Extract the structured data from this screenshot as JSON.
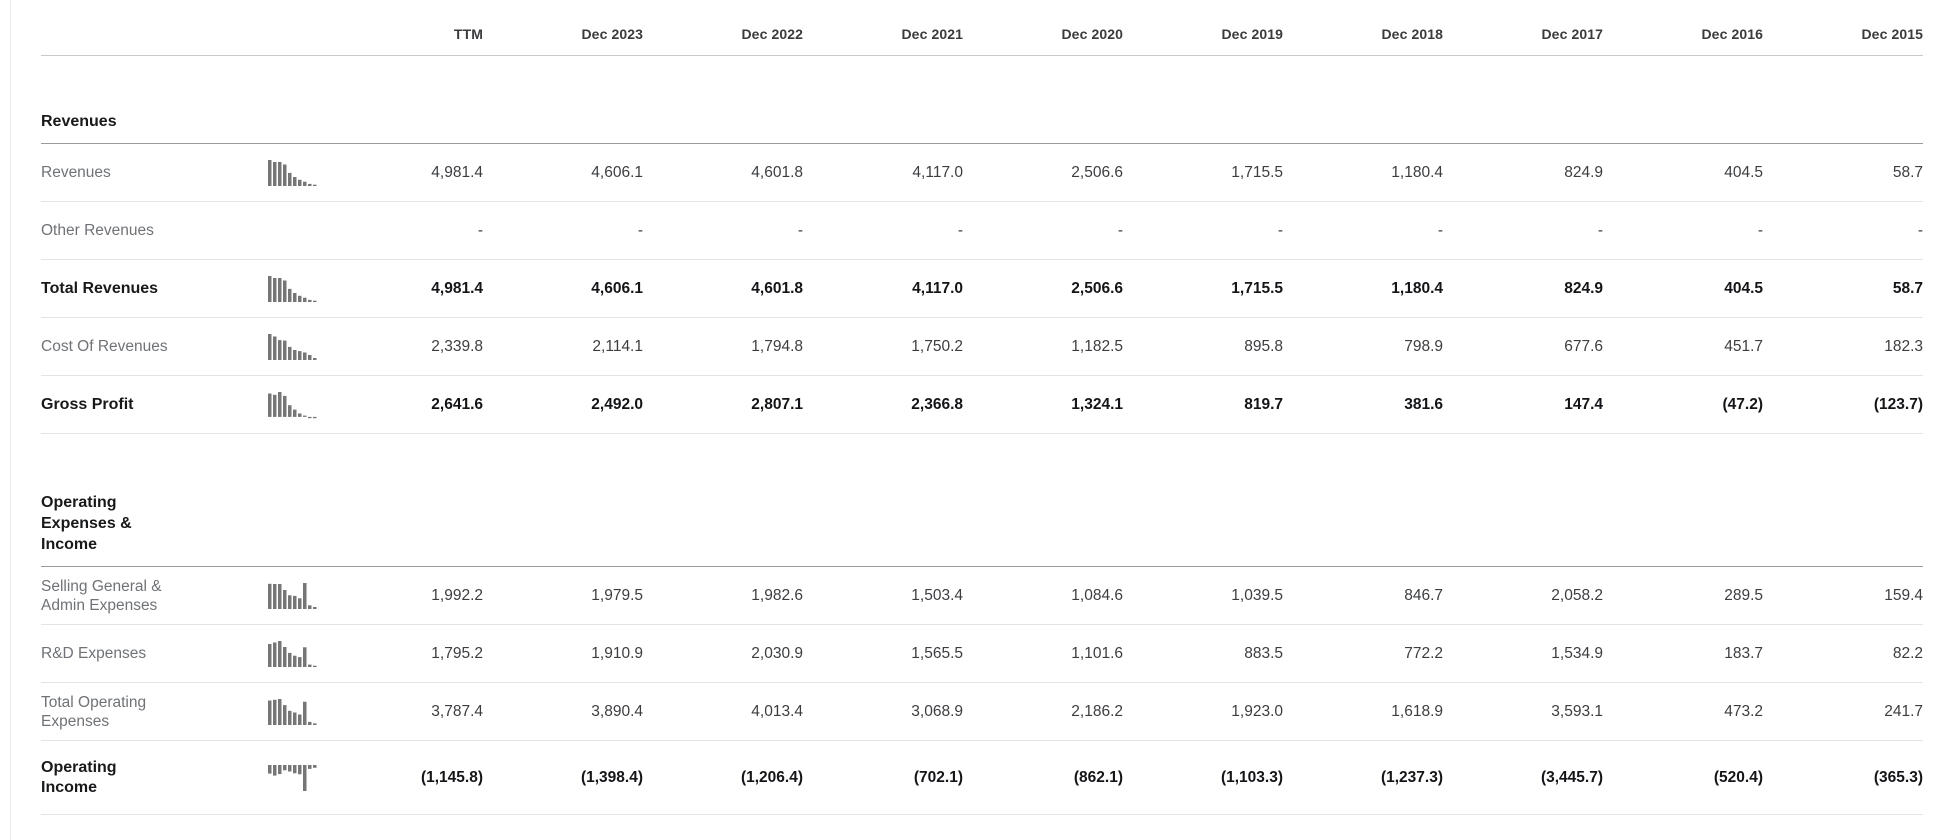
{
  "table": {
    "columns": [
      "TTM",
      "Dec 2023",
      "Dec 2022",
      "Dec 2021",
      "Dec 2020",
      "Dec 2019",
      "Dec 2018",
      "Dec 2017",
      "Dec 2016",
      "Dec 2015"
    ],
    "sections": [
      {
        "title": "Revenues",
        "rows": [
          {
            "label": "Revenues",
            "bold": false,
            "sparkline": true,
            "values": [
              4981.4,
              4606.1,
              4601.8,
              4117.0,
              2506.6,
              1715.5,
              1180.4,
              824.9,
              404.5,
              58.7
            ],
            "display": [
              "4,981.4",
              "4,606.1",
              "4,601.8",
              "4,117.0",
              "2,506.6",
              "1,715.5",
              "1,180.4",
              "824.9",
              "404.5",
              "58.7"
            ]
          },
          {
            "label": "Other Revenues",
            "bold": false,
            "sparkline": false,
            "values": [
              null,
              null,
              null,
              null,
              null,
              null,
              null,
              null,
              null,
              null
            ],
            "display": [
              "-",
              "-",
              "-",
              "-",
              "-",
              "-",
              "-",
              "-",
              "-",
              "-"
            ]
          },
          {
            "label": "Total Revenues",
            "bold": true,
            "sparkline": true,
            "values": [
              4981.4,
              4606.1,
              4601.8,
              4117.0,
              2506.6,
              1715.5,
              1180.4,
              824.9,
              404.5,
              58.7
            ],
            "display": [
              "4,981.4",
              "4,606.1",
              "4,601.8",
              "4,117.0",
              "2,506.6",
              "1,715.5",
              "1,180.4",
              "824.9",
              "404.5",
              "58.7"
            ]
          },
          {
            "label": "Cost Of Revenues",
            "bold": false,
            "sparkline": true,
            "values": [
              2339.8,
              2114.1,
              1794.8,
              1750.2,
              1182.5,
              895.8,
              798.9,
              677.6,
              451.7,
              182.3
            ],
            "display": [
              "2,339.8",
              "2,114.1",
              "1,794.8",
              "1,750.2",
              "1,182.5",
              "895.8",
              "798.9",
              "677.6",
              "451.7",
              "182.3"
            ]
          },
          {
            "label": "Gross Profit",
            "bold": true,
            "sparkline": true,
            "values": [
              2641.6,
              2492.0,
              2807.1,
              2366.8,
              1324.1,
              819.7,
              381.6,
              147.4,
              -47.2,
              -123.7
            ],
            "display": [
              "2,641.6",
              "2,492.0",
              "2,807.1",
              "2,366.8",
              "1,324.1",
              "819.7",
              "381.6",
              "147.4",
              "(47.2)",
              "(123.7)"
            ]
          }
        ]
      },
      {
        "title": "Operating Expenses & Income",
        "rows": [
          {
            "label": "Selling General & Admin Expenses",
            "bold": false,
            "sparkline": true,
            "values": [
              1992.2,
              1979.5,
              1982.6,
              1503.4,
              1084.6,
              1039.5,
              846.7,
              2058.2,
              289.5,
              159.4
            ],
            "display": [
              "1,992.2",
              "1,979.5",
              "1,982.6",
              "1,503.4",
              "1,084.6",
              "1,039.5",
              "846.7",
              "2,058.2",
              "289.5",
              "159.4"
            ]
          },
          {
            "label": "R&D Expenses",
            "bold": false,
            "sparkline": true,
            "values": [
              1795.2,
              1910.9,
              2030.9,
              1565.5,
              1101.6,
              883.5,
              772.2,
              1534.9,
              183.7,
              82.2
            ],
            "display": [
              "1,795.2",
              "1,910.9",
              "2,030.9",
              "1,565.5",
              "1,101.6",
              "883.5",
              "772.2",
              "1,534.9",
              "183.7",
              "82.2"
            ]
          },
          {
            "label": "Total Operating Expenses",
            "bold": false,
            "sparkline": true,
            "values": [
              3787.4,
              3890.4,
              4013.4,
              3068.9,
              2186.2,
              1923.0,
              1618.9,
              3593.1,
              473.2,
              241.7
            ],
            "display": [
              "3,787.4",
              "3,890.4",
              "4,013.4",
              "3,068.9",
              "2,186.2",
              "1,923.0",
              "1,618.9",
              "3,593.1",
              "473.2",
              "241.7"
            ]
          },
          {
            "label": "Operating Income",
            "bold": true,
            "sparkline": true,
            "values": [
              -1145.8,
              -1398.4,
              -1206.4,
              -702.1,
              -862.1,
              -1103.3,
              -1237.3,
              -3445.7,
              -520.4,
              -365.3
            ],
            "display": [
              "(1,145.8)",
              "(1,398.4)",
              "(1,206.4)",
              "(702.1)",
              "(862.1)",
              "(1,103.3)",
              "(1,237.3)",
              "(3,445.7)",
              "(520.4)",
              "(365.3)"
            ]
          }
        ]
      }
    ]
  },
  "colors": {
    "sparkline_bar": "#767676",
    "row_rule": "#e4e4e4",
    "section_rule": "#9b9b9b",
    "header_rule": "#c9c9cb",
    "label_text": "#6f7276",
    "number_text": "#3b3d40",
    "bold_text": "#141518"
  }
}
